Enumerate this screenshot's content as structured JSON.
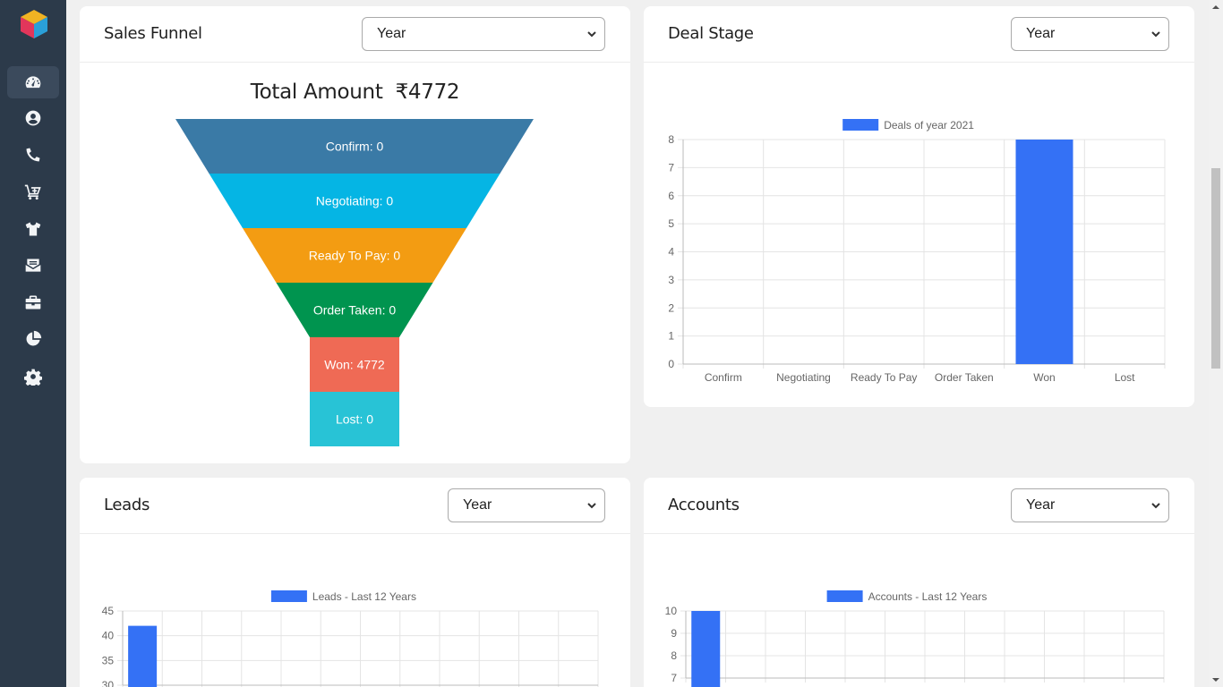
{
  "sidebar": {
    "items": [
      {
        "name": "dashboard",
        "icon": "gauge-icon",
        "active": true
      },
      {
        "name": "contacts",
        "icon": "user-circle-icon",
        "active": false
      },
      {
        "name": "calls",
        "icon": "phone-icon",
        "active": false
      },
      {
        "name": "orders",
        "icon": "cart-plus-icon",
        "active": false
      },
      {
        "name": "products",
        "icon": "shirt-icon",
        "active": false
      },
      {
        "name": "inbox",
        "icon": "mail-bulk-icon",
        "active": false
      },
      {
        "name": "deals",
        "icon": "briefcase-icon",
        "active": false
      },
      {
        "name": "reports",
        "icon": "pie-chart-icon",
        "active": false
      },
      {
        "name": "settings",
        "icon": "gear-icon",
        "active": false
      }
    ]
  },
  "sales_funnel": {
    "title": "Sales Funnel",
    "period": "Year",
    "total_label": "Total Amount",
    "total_value": "₹4772",
    "stages": [
      {
        "label": "Confirm: 0",
        "color": "#3a7aa6"
      },
      {
        "label": "Negotiating: 0",
        "color": "#05b5e4"
      },
      {
        "label": "Ready To Pay: 0",
        "color": "#f39c12"
      },
      {
        "label": "Order Taken: 0",
        "color": "#00944f"
      },
      {
        "label": "Won: 4772",
        "color": "#ef6a55"
      },
      {
        "label": "Lost: 0",
        "color": "#28c3d6"
      }
    ]
  },
  "deal_stage": {
    "title": "Deal Stage",
    "period": "Year"
  },
  "leads": {
    "title": "Leads",
    "period": "Year"
  },
  "accounts": {
    "title": "Accounts",
    "period": "Year"
  },
  "colors": {
    "bar": "#3471f5",
    "sidebar": "#2c3a4a"
  },
  "chart_data": [
    {
      "type": "bar",
      "legend": "Deals of year 2021",
      "categories": [
        "Confirm",
        "Negotiating",
        "Ready To Pay",
        "Order Taken",
        "Won",
        "Lost"
      ],
      "values": [
        0,
        0,
        0,
        0,
        8,
        0
      ],
      "ylim": [
        0,
        8
      ],
      "yticks": [
        "0",
        "1",
        "2",
        "3",
        "4",
        "5",
        "6",
        "7",
        "8"
      ]
    },
    {
      "type": "bar",
      "legend": "Leads - Last 12 Years",
      "values": [
        42
      ],
      "ylim": [
        30,
        45
      ],
      "yticks": [
        "30",
        "35",
        "40",
        "45"
      ]
    },
    {
      "type": "bar",
      "legend": "Accounts - Last 12 Years",
      "values": [
        10
      ],
      "ylim": [
        7,
        10
      ],
      "yticks": [
        "7",
        "8",
        "9",
        "10"
      ]
    }
  ]
}
